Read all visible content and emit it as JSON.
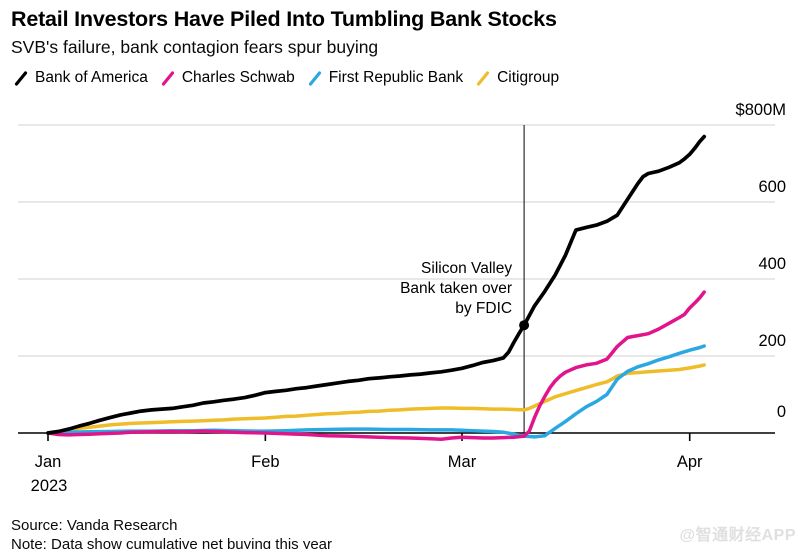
{
  "title": "Retail Investors Have Piled Into Tumbling Bank Stocks",
  "subtitle": "SVB's failure, bank contagion fears spur buying",
  "legend": [
    {
      "label": "Bank of America",
      "color": "#000000"
    },
    {
      "label": "Charles Schwab",
      "color": "#e1148c"
    },
    {
      "label": "First Republic Bank",
      "color": "#2ba7e2"
    },
    {
      "label": "Citigroup",
      "color": "#efbd2a"
    }
  ],
  "annotation": {
    "lines": [
      "Silicon Valley",
      "Bank taken over",
      "by FDIC"
    ],
    "event_x_td": 46,
    "marker_series": "Bank of America",
    "marker_value": 280
  },
  "source": "Source: Vanda Research",
  "note": "Note: Data show cumulative net buying this year",
  "watermark": "@智通财经APP",
  "chart_data": {
    "type": "line",
    "title": "Cumulative net buying this year ($M)",
    "x_unit": "trading_day_index (0 = first 2023 session, Jan 3)",
    "x_ticks": [
      {
        "label": "Jan",
        "td": 0
      },
      {
        "label": "Feb",
        "td": 21
      },
      {
        "label": "Mar",
        "td": 40
      },
      {
        "label": "Apr",
        "td": 62
      }
    ],
    "x_sub_label": "2023",
    "y_ticks": [
      {
        "value": 0,
        "label": "0"
      },
      {
        "value": 200,
        "label": "200"
      },
      {
        "value": 400,
        "label": "400"
      },
      {
        "value": 600,
        "label": "600"
      },
      {
        "value": 800,
        "label": "$800M"
      }
    ],
    "ylim": [
      -20,
      800
    ],
    "grid": true,
    "legend_position": "top",
    "series": [
      {
        "name": "Bank of America",
        "color": "#000000",
        "width": 3.7,
        "points": [
          [
            0,
            0
          ],
          [
            1,
            4
          ],
          [
            2,
            10
          ],
          [
            3,
            18
          ],
          [
            4,
            25
          ],
          [
            5,
            33
          ],
          [
            6,
            40
          ],
          [
            7,
            47
          ],
          [
            8,
            52
          ],
          [
            9,
            57
          ],
          [
            10,
            60
          ],
          [
            11,
            62
          ],
          [
            12,
            64
          ],
          [
            13,
            68
          ],
          [
            14,
            72
          ],
          [
            15,
            78
          ],
          [
            16,
            81
          ],
          [
            17,
            85
          ],
          [
            18,
            88
          ],
          [
            19,
            92
          ],
          [
            20,
            98
          ],
          [
            21,
            105
          ],
          [
            22,
            108
          ],
          [
            23,
            111
          ],
          [
            24,
            115
          ],
          [
            25,
            118
          ],
          [
            26,
            122
          ],
          [
            27,
            126
          ],
          [
            28,
            130
          ],
          [
            29,
            134
          ],
          [
            30,
            137
          ],
          [
            31,
            141
          ],
          [
            32,
            143
          ],
          [
            33,
            146
          ],
          [
            34,
            148
          ],
          [
            35,
            151
          ],
          [
            36,
            153
          ],
          [
            37,
            156
          ],
          [
            38,
            159
          ],
          [
            39,
            163
          ],
          [
            40,
            168
          ],
          [
            41,
            175
          ],
          [
            42,
            183
          ],
          [
            43,
            188
          ],
          [
            44,
            195
          ],
          [
            44.5,
            210
          ],
          [
            45,
            235
          ],
          [
            45.5,
            258
          ],
          [
            46,
            280
          ],
          [
            47,
            330
          ],
          [
            48,
            368
          ],
          [
            49,
            410
          ],
          [
            50,
            462
          ],
          [
            51,
            527
          ],
          [
            52,
            534
          ],
          [
            53,
            540
          ],
          [
            54,
            550
          ],
          [
            55,
            566
          ],
          [
            56,
            607
          ],
          [
            57,
            648
          ],
          [
            57.5,
            666
          ],
          [
            58,
            674
          ],
          [
            59,
            680
          ],
          [
            60,
            690
          ],
          [
            61,
            702
          ],
          [
            61.5,
            712
          ],
          [
            62,
            724
          ],
          [
            62.5,
            740
          ],
          [
            63,
            758
          ],
          [
            63.4,
            770
          ]
        ]
      },
      {
        "name": "Charles Schwab",
        "color": "#e1148c",
        "width": 3.5,
        "points": [
          [
            0,
            0
          ],
          [
            1,
            -4
          ],
          [
            2,
            -5
          ],
          [
            3,
            -4
          ],
          [
            4,
            -3
          ],
          [
            5,
            -2
          ],
          [
            6,
            -1
          ],
          [
            7,
            0
          ],
          [
            8,
            2
          ],
          [
            10,
            3
          ],
          [
            12,
            4
          ],
          [
            13,
            3
          ],
          [
            14,
            4
          ],
          [
            15,
            5
          ],
          [
            16,
            4
          ],
          [
            17,
            3
          ],
          [
            18,
            2
          ],
          [
            19,
            1
          ],
          [
            21,
            0
          ],
          [
            23,
            -2
          ],
          [
            25,
            -4
          ],
          [
            27,
            -7
          ],
          [
            29,
            -8
          ],
          [
            31,
            -10
          ],
          [
            33,
            -12
          ],
          [
            35,
            -13
          ],
          [
            37,
            -15
          ],
          [
            38,
            -16
          ],
          [
            39,
            -13
          ],
          [
            40,
            -11
          ],
          [
            41,
            -12
          ],
          [
            42,
            -13
          ],
          [
            43,
            -13
          ],
          [
            44,
            -12
          ],
          [
            45,
            -11
          ],
          [
            46,
            -8
          ],
          [
            46.5,
            5
          ],
          [
            47,
            40
          ],
          [
            47.5,
            70
          ],
          [
            48,
            95
          ],
          [
            48.5,
            118
          ],
          [
            49,
            135
          ],
          [
            49.5,
            148
          ],
          [
            50,
            158
          ],
          [
            51,
            170
          ],
          [
            52,
            177
          ],
          [
            53,
            181
          ],
          [
            54,
            192
          ],
          [
            54.5,
            208
          ],
          [
            55,
            225
          ],
          [
            56,
            248
          ],
          [
            57,
            253
          ],
          [
            58,
            258
          ],
          [
            59,
            270
          ],
          [
            60,
            285
          ],
          [
            61,
            300
          ],
          [
            61.5,
            308
          ],
          [
            62,
            325
          ],
          [
            62.5,
            338
          ],
          [
            63,
            352
          ],
          [
            63.4,
            366
          ]
        ]
      },
      {
        "name": "First Republic Bank",
        "color": "#2ba7e2",
        "width": 3.5,
        "points": [
          [
            0,
            0
          ],
          [
            1,
            1
          ],
          [
            2,
            2
          ],
          [
            4,
            3
          ],
          [
            6,
            4
          ],
          [
            8,
            5
          ],
          [
            10,
            5
          ],
          [
            12,
            6
          ],
          [
            14,
            6
          ],
          [
            16,
            7
          ],
          [
            18,
            6
          ],
          [
            20,
            5
          ],
          [
            21,
            5
          ],
          [
            23,
            6
          ],
          [
            25,
            8
          ],
          [
            27,
            9
          ],
          [
            29,
            10
          ],
          [
            31,
            10
          ],
          [
            33,
            9
          ],
          [
            35,
            9
          ],
          [
            37,
            8
          ],
          [
            39,
            8
          ],
          [
            40,
            7
          ],
          [
            41,
            6
          ],
          [
            42,
            5
          ],
          [
            43,
            4
          ],
          [
            44,
            2
          ],
          [
            45,
            -3
          ],
          [
            46,
            -8
          ],
          [
            47,
            -10
          ],
          [
            48,
            -7
          ],
          [
            49,
            12
          ],
          [
            50,
            30
          ],
          [
            51,
            50
          ],
          [
            52,
            68
          ],
          [
            53,
            82
          ],
          [
            54,
            100
          ],
          [
            54.5,
            120
          ],
          [
            55,
            140
          ],
          [
            56,
            160
          ],
          [
            57,
            172
          ],
          [
            58,
            180
          ],
          [
            59,
            190
          ],
          [
            60,
            198
          ],
          [
            61,
            207
          ],
          [
            62,
            215
          ],
          [
            63,
            222
          ],
          [
            63.4,
            226
          ]
        ]
      },
      {
        "name": "Citigroup",
        "color": "#efbd2a",
        "width": 3.5,
        "points": [
          [
            0,
            0
          ],
          [
            1,
            4
          ],
          [
            2,
            8
          ],
          [
            3,
            12
          ],
          [
            4,
            15
          ],
          [
            5,
            18
          ],
          [
            6,
            21
          ],
          [
            7,
            23
          ],
          [
            8,
            25
          ],
          [
            9,
            26
          ],
          [
            10,
            27
          ],
          [
            11,
            28
          ],
          [
            12,
            29
          ],
          [
            13,
            30
          ],
          [
            14,
            31
          ],
          [
            15,
            32
          ],
          [
            16,
            33
          ],
          [
            17,
            34
          ],
          [
            18,
            36
          ],
          [
            19,
            37
          ],
          [
            20,
            38
          ],
          [
            21,
            39
          ],
          [
            22,
            41
          ],
          [
            23,
            43
          ],
          [
            24,
            44
          ],
          [
            25,
            46
          ],
          [
            26,
            48
          ],
          [
            27,
            50
          ],
          [
            28,
            51
          ],
          [
            29,
            53
          ],
          [
            30,
            54
          ],
          [
            31,
            56
          ],
          [
            32,
            57
          ],
          [
            33,
            59
          ],
          [
            34,
            60
          ],
          [
            35,
            62
          ],
          [
            36,
            63
          ],
          [
            37,
            64
          ],
          [
            38,
            65
          ],
          [
            39,
            65
          ],
          [
            40,
            64
          ],
          [
            41,
            64
          ],
          [
            42,
            63
          ],
          [
            43,
            62
          ],
          [
            44,
            62
          ],
          [
            45,
            61
          ],
          [
            46,
            60
          ],
          [
            46.5,
            64
          ],
          [
            47,
            70
          ],
          [
            47.5,
            76
          ],
          [
            48,
            82
          ],
          [
            48.5,
            88
          ],
          [
            49,
            94
          ],
          [
            50,
            102
          ],
          [
            51,
            110
          ],
          [
            52,
            118
          ],
          [
            53,
            126
          ],
          [
            54,
            133
          ],
          [
            54.5,
            140
          ],
          [
            55,
            148
          ],
          [
            56,
            155
          ],
          [
            57,
            157
          ],
          [
            58,
            159
          ],
          [
            59,
            161
          ],
          [
            60,
            163
          ],
          [
            61,
            165
          ],
          [
            62,
            169
          ],
          [
            63,
            174
          ],
          [
            63.4,
            177
          ]
        ]
      }
    ]
  }
}
